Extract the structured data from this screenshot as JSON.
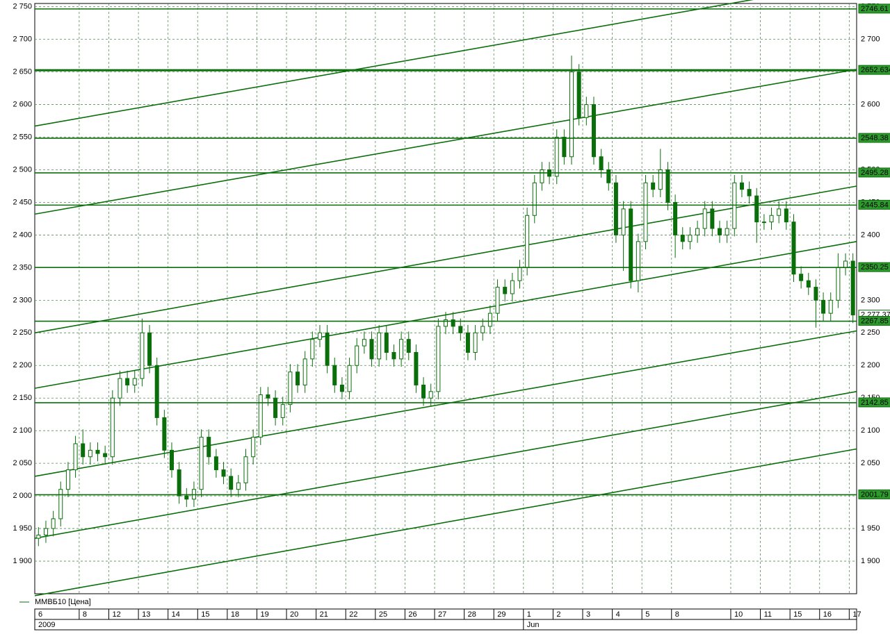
{
  "chart_data": {
    "type": "candlestick",
    "series": [
      {
        "name": "ММВБ10 [Цена]",
        "color": "#0a6e0a",
        "open": [
          1935,
          1940,
          1950,
          1965,
          2010,
          2040,
          2080,
          2060,
          2070,
          2065,
          2060,
          2150,
          2180,
          2170,
          2180,
          2250,
          2200,
          2120,
          2070,
          2040,
          2000,
          1995,
          2010,
          2090,
          2060,
          2040,
          2030,
          2010,
          2020,
          2060,
          2090,
          2155,
          2150,
          2120,
          2140,
          2190,
          2170,
          2210,
          2240,
          2250,
          2200,
          2170,
          2160,
          2200,
          2230,
          2240,
          2210,
          2250,
          2220,
          2210,
          2240,
          2220,
          2170,
          2150,
          2160,
          2260,
          2270,
          2260,
          2250,
          2220,
          2250,
          2260,
          2280,
          2320,
          2310,
          2330,
          2350,
          2430,
          2480,
          2500,
          2490,
          2550,
          2520,
          2650,
          2580,
          2600,
          2520,
          2500,
          2480,
          2400,
          2440,
          2330,
          2390,
          2480,
          2470,
          2500,
          2450,
          2400,
          2390,
          2400,
          2410,
          2440,
          2410,
          2400,
          2410,
          2480,
          2470,
          2460,
          2420,
          2420,
          2430,
          2440,
          2420,
          2340,
          2330,
          2320,
          2300,
          2280,
          2300,
          2350,
          2360
        ],
        "high": [
          1952,
          1962,
          1977,
          2022,
          2052,
          2092,
          2102,
          2082,
          2082,
          2077,
          2162,
          2192,
          2192,
          2192,
          2272,
          2262,
          2212,
          2132,
          2082,
          2052,
          2012,
          2022,
          2102,
          2102,
          2072,
          2052,
          2042,
          2032,
          2072,
          2102,
          2167,
          2167,
          2162,
          2152,
          2202,
          2202,
          2222,
          2252,
          2262,
          2262,
          2212,
          2182,
          2212,
          2242,
          2252,
          2252,
          2262,
          2262,
          2232,
          2252,
          2252,
          2232,
          2182,
          2172,
          2272,
          2282,
          2282,
          2272,
          2262,
          2262,
          2272,
          2292,
          2332,
          2332,
          2342,
          2362,
          2442,
          2492,
          2512,
          2512,
          2562,
          2562,
          2675,
          2662,
          2612,
          2612,
          2532,
          2512,
          2492,
          2452,
          2452,
          2402,
          2492,
          2492,
          2532,
          2512,
          2462,
          2412,
          2412,
          2422,
          2452,
          2452,
          2422,
          2422,
          2492,
          2492,
          2482,
          2472,
          2432,
          2442,
          2452,
          2452,
          2432,
          2352,
          2342,
          2332,
          2312,
          2312,
          2372,
          2372,
          2372
        ],
        "low": [
          1923,
          1928,
          1938,
          1953,
          1998,
          2028,
          2048,
          2048,
          2053,
          2048,
          2048,
          2138,
          2158,
          2158,
          2168,
          2188,
          2108,
          2058,
          2028,
          1988,
          1983,
          1983,
          1998,
          2048,
          2028,
          2018,
          1998,
          1998,
          2008,
          2048,
          2078,
          2138,
          2108,
          2108,
          2128,
          2158,
          2158,
          2198,
          2228,
          2188,
          2158,
          2148,
          2148,
          2188,
          2218,
          2198,
          2198,
          2208,
          2198,
          2198,
          2208,
          2158,
          2138,
          2138,
          2148,
          2248,
          2248,
          2238,
          2208,
          2208,
          2238,
          2248,
          2268,
          2298,
          2298,
          2318,
          2338,
          2418,
          2468,
          2478,
          2478,
          2508,
          2508,
          2568,
          2568,
          2508,
          2488,
          2468,
          2388,
          2345,
          2318,
          2312,
          2378,
          2458,
          2458,
          2438,
          2365,
          2378,
          2378,
          2388,
          2398,
          2398,
          2388,
          2388,
          2398,
          2458,
          2448,
          2388,
          2408,
          2408,
          2418,
          2408,
          2328,
          2318,
          2308,
          2258,
          2268,
          2268,
          2288,
          2338,
          2265
        ],
        "close": [
          1940,
          1950,
          1965,
          2010,
          2040,
          2080,
          2060,
          2070,
          2065,
          2060,
          2150,
          2180,
          2170,
          2180,
          2250,
          2200,
          2120,
          2070,
          2040,
          2000,
          1995,
          2010,
          2090,
          2060,
          2040,
          2030,
          2010,
          2020,
          2060,
          2090,
          2155,
          2150,
          2120,
          2140,
          2190,
          2170,
          2210,
          2240,
          2250,
          2200,
          2170,
          2160,
          2200,
          2230,
          2240,
          2210,
          2250,
          2220,
          2210,
          2240,
          2220,
          2170,
          2150,
          2160,
          2260,
          2270,
          2260,
          2250,
          2220,
          2250,
          2260,
          2280,
          2320,
          2310,
          2330,
          2350,
          2430,
          2480,
          2500,
          2490,
          2550,
          2520,
          2650,
          2580,
          2600,
          2520,
          2500,
          2480,
          2400,
          2440,
          2330,
          2390,
          2480,
          2470,
          2500,
          2450,
          2400,
          2390,
          2400,
          2410,
          2440,
          2410,
          2400,
          2410,
          2480,
          2470,
          2460,
          2420,
          2420,
          2430,
          2440,
          2420,
          2340,
          2330,
          2320,
          2300,
          2280,
          2300,
          2350,
          2360,
          2277.37
        ],
        "last_label": "2 277.37"
      }
    ],
    "xlim": [
      -0.5,
      110.5
    ],
    "xticks": [
      {
        "value": -0.5,
        "label": "6"
      },
      {
        "value": 5.5,
        "label": "8"
      },
      {
        "value": 9.5,
        "label": "12"
      },
      {
        "value": 13.5,
        "label": "13"
      },
      {
        "value": 17.5,
        "label": "14"
      },
      {
        "value": 21.5,
        "label": "15"
      },
      {
        "value": 25.5,
        "label": "18"
      },
      {
        "value": 29.5,
        "label": "19"
      },
      {
        "value": 33.5,
        "label": "20"
      },
      {
        "value": 37.5,
        "label": "21"
      },
      {
        "value": 41.5,
        "label": "22"
      },
      {
        "value": 45.5,
        "label": "25"
      },
      {
        "value": 49.5,
        "label": "26"
      },
      {
        "value": 53.5,
        "label": "27"
      },
      {
        "value": 57.5,
        "label": "28"
      },
      {
        "value": 61.5,
        "label": "29"
      },
      {
        "value": 65.5,
        "label": "1"
      },
      {
        "value": 69.5,
        "label": "2"
      },
      {
        "value": 73.5,
        "label": "3"
      },
      {
        "value": 77.5,
        "label": "4"
      },
      {
        "value": 81.5,
        "label": "5"
      },
      {
        "value": 85.5,
        "label": "8"
      },
      {
        "value": 93.5,
        "label": "10"
      },
      {
        "value": 97.5,
        "label": "11"
      },
      {
        "value": 101.5,
        "label": "15"
      },
      {
        "value": 105.5,
        "label": "16"
      },
      {
        "value": 109.5,
        "label": "17"
      }
    ],
    "period_ticks": [
      {
        "value": -0.5,
        "label": "2009"
      },
      {
        "value": 65.5,
        "label": "Jun"
      }
    ],
    "ylim": [
      1850,
      2755
    ],
    "yticks": [
      {
        "value": 1900,
        "label": "1 900"
      },
      {
        "value": 1950,
        "label": "1 950"
      },
      {
        "value": 2000,
        "label": "2 000"
      },
      {
        "value": 2050,
        "label": "2 050"
      },
      {
        "value": 2100,
        "label": "2 100"
      },
      {
        "value": 2150,
        "label": "2 150"
      },
      {
        "value": 2200,
        "label": "2 200"
      },
      {
        "value": 2250,
        "label": "2 250"
      },
      {
        "value": 2300,
        "label": "2 300"
      },
      {
        "value": 2350,
        "label": "2 350"
      },
      {
        "value": 2400,
        "label": "2 400"
      },
      {
        "value": 2450,
        "label": "2 450"
      },
      {
        "value": 2500,
        "label": "2 500"
      },
      {
        "value": 2550,
        "label": "2 550"
      },
      {
        "value": 2600,
        "label": "2 600"
      },
      {
        "value": 2650,
        "label": "2 650"
      },
      {
        "value": 2700,
        "label": "2 700"
      },
      {
        "value": 2750,
        "label": "2 750"
      }
    ],
    "grid": true,
    "levels": [
      {
        "value": 2746.61,
        "label": "2746.61"
      },
      {
        "value": 2652.634,
        "label": "2652.634"
      },
      {
        "value": 2548.38,
        "label": "2548.38"
      },
      {
        "value": 2495.28,
        "label": "2495.28"
      },
      {
        "value": 2445.84,
        "label": "2445.84"
      },
      {
        "value": 2350.25,
        "label": "2350.25"
      },
      {
        "value": 2267.85,
        "label": "2267.85"
      },
      {
        "value": 2142.85,
        "label": "2142.85"
      },
      {
        "value": 2001.79,
        "label": "2001.79"
      }
    ],
    "trend_lines": [
      {
        "start": 2567,
        "end": 2789
      },
      {
        "start": 2432,
        "end": 2654
      },
      {
        "start": 2250,
        "end": 2475
      },
      {
        "start": 2165,
        "end": 2390
      },
      {
        "start": 2030,
        "end": 2253
      },
      {
        "start": 1935,
        "end": 2160
      },
      {
        "start": 1847,
        "end": 2072
      }
    ]
  }
}
